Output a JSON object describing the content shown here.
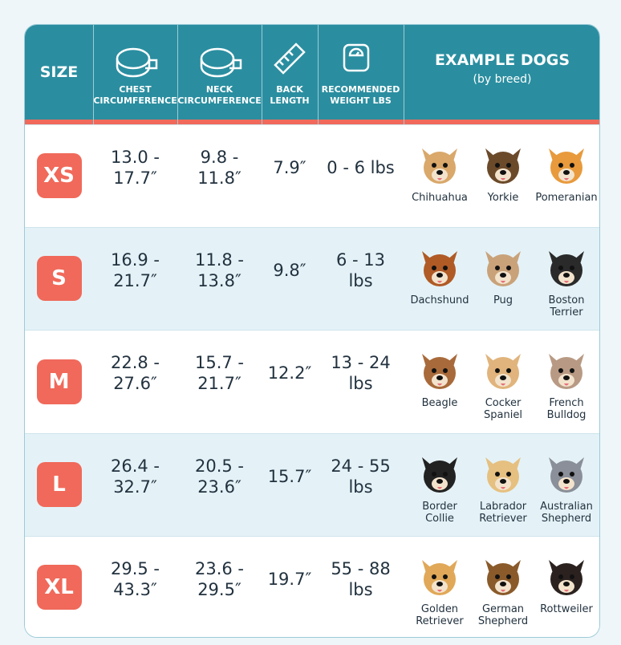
{
  "header": {
    "columns": [
      "SIZE",
      "CHEST CIRCUMFERENCE",
      "NECK CIRCUMFERENCE",
      "BACK LENGTH",
      "RECOMMENDED WEIGHT LBS",
      "EXAMPLE DOGS"
    ],
    "example_subtitle": "(by breed)"
  },
  "table": {
    "rows": [
      {
        "size": "XS",
        "chest": "13.0 - 17.7″",
        "neck": "9.8 - 11.8″",
        "back": "7.9″",
        "weight": "0 - 6 lbs",
        "dogs": [
          "Chihuahua",
          "Yorkie",
          "Pomeranian"
        ]
      },
      {
        "size": "S",
        "chest": "16.9 - 21.7″",
        "neck": "11.8 - 13.8″",
        "back": "9.8″",
        "weight": "6 - 13 lbs",
        "dogs": [
          "Dachshund",
          "Pug",
          "Boston Terrier"
        ]
      },
      {
        "size": "M",
        "chest": "22.8 - 27.6″",
        "neck": "15.7 - 21.7″",
        "back": "12.2″",
        "weight": "13 - 24 lbs",
        "dogs": [
          "Beagle",
          "Cocker Spaniel",
          "French Bulldog"
        ]
      },
      {
        "size": "L",
        "chest": "26.4 - 32.7″",
        "neck": "20.5 - 23.6″",
        "back": "15.7″",
        "weight": "24 - 55 lbs",
        "dogs": [
          "Border Collie",
          "Labrador Retriever",
          "Australian Shepherd"
        ]
      },
      {
        "size": "XL",
        "chest": "29.5 - 43.3″",
        "neck": "23.6 - 29.5″",
        "back": "19.7″",
        "weight": "55 - 88 lbs",
        "dogs": [
          "Golden Retriever",
          "German Shepherd",
          "Rottweiler"
        ]
      }
    ]
  }
}
